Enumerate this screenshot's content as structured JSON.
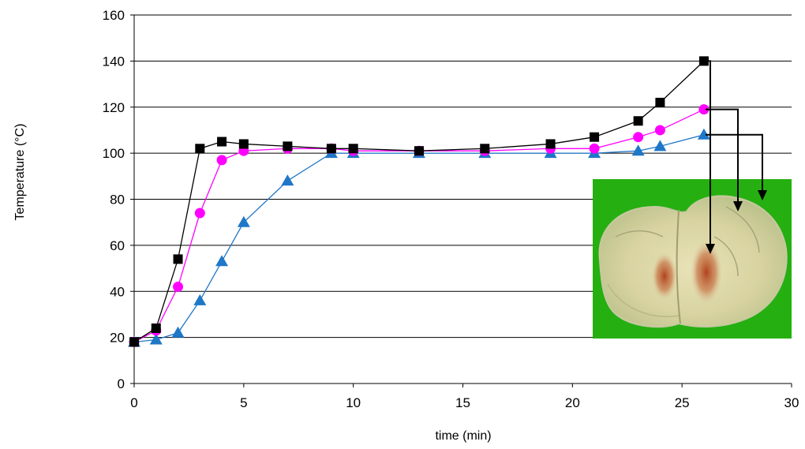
{
  "chart_data": {
    "type": "line",
    "title": "",
    "xlabel": "time (min)",
    "ylabel": "Temperature (°C)",
    "xlim": [
      0,
      30
    ],
    "ylim": [
      0,
      160
    ],
    "xticks": [
      0,
      5,
      10,
      15,
      20,
      25,
      30
    ],
    "yticks": [
      0,
      20,
      40,
      60,
      80,
      100,
      120,
      140,
      160
    ],
    "grid": "horizontal",
    "legend": "none",
    "series": [
      {
        "marker": "square",
        "color": "#000000",
        "points": [
          [
            0,
            18
          ],
          [
            1,
            24
          ],
          [
            2,
            54
          ],
          [
            3,
            102
          ],
          [
            4,
            105
          ],
          [
            5,
            104
          ],
          [
            7,
            103
          ],
          [
            9,
            102
          ],
          [
            10,
            102
          ],
          [
            13,
            101
          ],
          [
            16,
            102
          ],
          [
            19,
            104
          ],
          [
            21,
            107
          ],
          [
            23,
            114
          ],
          [
            24,
            122
          ],
          [
            26,
            140
          ]
        ]
      },
      {
        "marker": "circle",
        "color": "#ff00ff",
        "points": [
          [
            0,
            18
          ],
          [
            1,
            23
          ],
          [
            2,
            42
          ],
          [
            3,
            74
          ],
          [
            4,
            97
          ],
          [
            5,
            101
          ],
          [
            7,
            102
          ],
          [
            9,
            102
          ],
          [
            10,
            101
          ],
          [
            13,
            101
          ],
          [
            16,
            101
          ],
          [
            19,
            102
          ],
          [
            21,
            102
          ],
          [
            23,
            107
          ],
          [
            24,
            110
          ],
          [
            26,
            119
          ]
        ]
      },
      {
        "marker": "triangle",
        "color": "#1f77c8",
        "points": [
          [
            0,
            18
          ],
          [
            1,
            19
          ],
          [
            2,
            22
          ],
          [
            3,
            36
          ],
          [
            4,
            53
          ],
          [
            5,
            70
          ],
          [
            7,
            88
          ],
          [
            9,
            100
          ],
          [
            10,
            100
          ],
          [
            13,
            100
          ],
          [
            16,
            100
          ],
          [
            19,
            100
          ],
          [
            21,
            100
          ],
          [
            23,
            101
          ],
          [
            24,
            103
          ],
          [
            26,
            108
          ]
        ]
      }
    ],
    "annotations": {
      "inset_photo": "cabbage-cross-section-photo",
      "inset_background": "#28b814",
      "arrows": "from end of each series down to the photo"
    }
  }
}
